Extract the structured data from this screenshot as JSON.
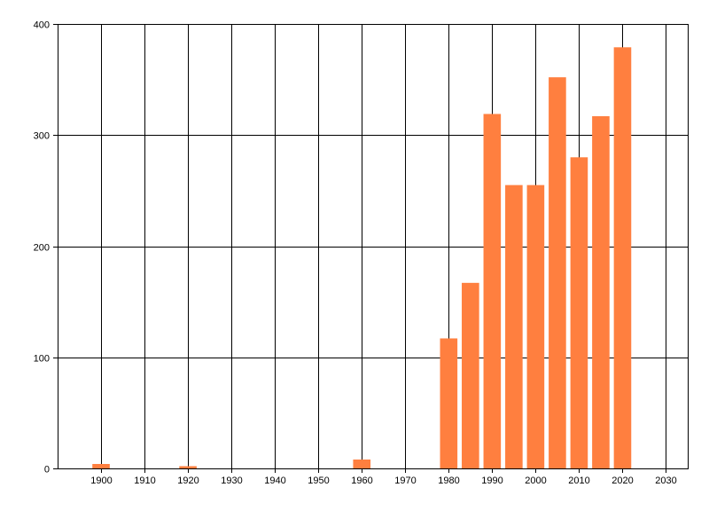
{
  "chart_data": {
    "type": "bar",
    "title": "",
    "xlabel": "",
    "ylabel": "",
    "x": [
      1900,
      1920,
      1960,
      1980,
      1985,
      1990,
      1995,
      2000,
      2005,
      2010,
      2015,
      2020
    ],
    "values": [
      4,
      2,
      8,
      117,
      167,
      319,
      255,
      255,
      352,
      280,
      317,
      379
    ],
    "xlim": [
      1890,
      2035
    ],
    "ylim": [
      0,
      400
    ],
    "x_ticks": [
      1900,
      1910,
      1920,
      1930,
      1940,
      1950,
      1960,
      1970,
      1980,
      1990,
      2000,
      2010,
      2020,
      2030
    ],
    "y_ticks": [
      0,
      100,
      200,
      300,
      400
    ],
    "bar_width_years": 4,
    "grid": true,
    "legend": "none",
    "bar_color": "#ff7f3f",
    "grid_color": "#000000"
  }
}
